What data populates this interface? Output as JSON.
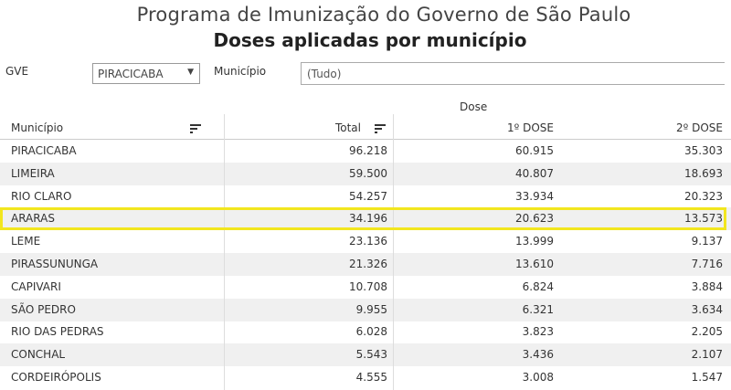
{
  "header": {
    "title": "Programa de Imunização do Governo de São Paulo",
    "subtitle": "Doses aplicadas por município"
  },
  "filters": {
    "gve_label": "GVE",
    "gve_value": "PIRACICABA",
    "municipio_label": "Município",
    "municipio_value": "(Tudo)"
  },
  "table": {
    "group_header": "Dose",
    "columns": [
      "Município",
      "Total",
      "1º DOSE",
      "2º DOSE"
    ],
    "highlight_color": "#f2e61f",
    "highlighted_row": "ARARAS",
    "rows": [
      [
        "PIRACICABA",
        "96.218",
        "60.915",
        "35.303"
      ],
      [
        "LIMEIRA",
        "59.500",
        "40.807",
        "18.693"
      ],
      [
        "RIO CLARO",
        "54.257",
        "33.934",
        "20.323"
      ],
      [
        "ARARAS",
        "34.196",
        "20.623",
        "13.573"
      ],
      [
        "LEME",
        "23.136",
        "13.999",
        "9.137"
      ],
      [
        "PIRASSUNUNGA",
        "21.326",
        "13.610",
        "7.716"
      ],
      [
        "CAPIVARI",
        "10.708",
        "6.824",
        "3.884"
      ],
      [
        "SÃO PEDRO",
        "9.955",
        "6.321",
        "3.634"
      ],
      [
        "RIO DAS PEDRAS",
        "6.028",
        "3.823",
        "2.205"
      ],
      [
        "CONCHAL",
        "5.543",
        "3.436",
        "2.107"
      ],
      [
        "CORDEIRÓPOLIS",
        "4.555",
        "3.008",
        "1.547"
      ]
    ]
  }
}
